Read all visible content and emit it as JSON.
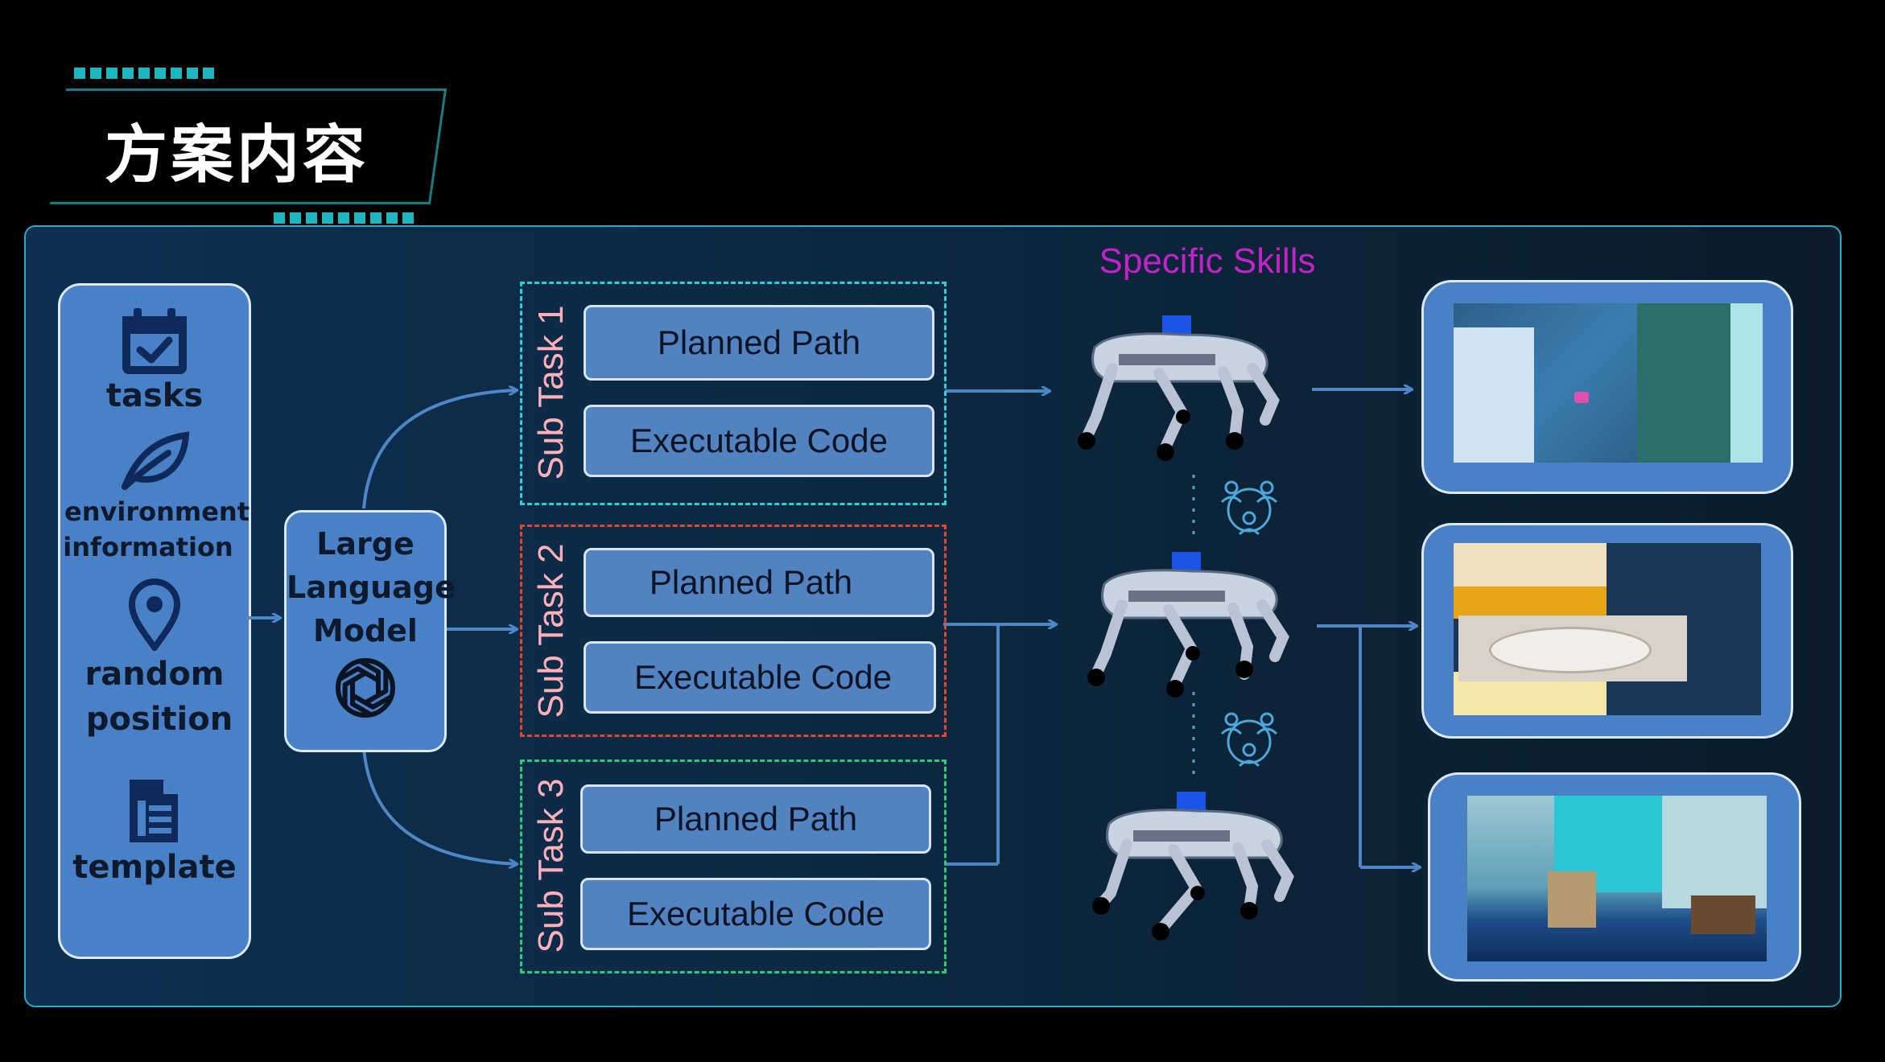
{
  "header": {
    "title": "方案内容"
  },
  "inputs": {
    "items": [
      {
        "label": "tasks",
        "icon": "calendar-check-icon"
      },
      {
        "label_line1": "environment",
        "label_line2": "information",
        "icon": "leaf-icon"
      },
      {
        "label_line1": "random",
        "label_line2": "position",
        "icon": "location-pin-icon"
      },
      {
        "label": "template",
        "icon": "document-icon"
      }
    ]
  },
  "llm": {
    "line1": "Large",
    "line2": "Language",
    "line3": "Model",
    "icon": "openai-logo-icon"
  },
  "subtasks": [
    {
      "label": "Sub Task 1",
      "color": "#2fd1d9",
      "planned": "Planned Path",
      "code": "Executable Code"
    },
    {
      "label": "Sub Task 2",
      "color": "#e0492c",
      "planned": "Planned Path",
      "code": "Executable Code"
    },
    {
      "label": "Sub Task 3",
      "color": "#2ccb7a",
      "planned": "Planned Path",
      "code": "Executable Code"
    }
  ],
  "skills": {
    "title": "Specific Skills",
    "robot_icon": "quadruped-robot-icon",
    "link_icon": "team-network-icon"
  },
  "colors": {
    "accent": "#1fb6bf",
    "panel_border": "#2fa9c4",
    "box_fill": "#4a80c6",
    "arrow": "#4f86c6",
    "skills_title": "#c123c9"
  }
}
